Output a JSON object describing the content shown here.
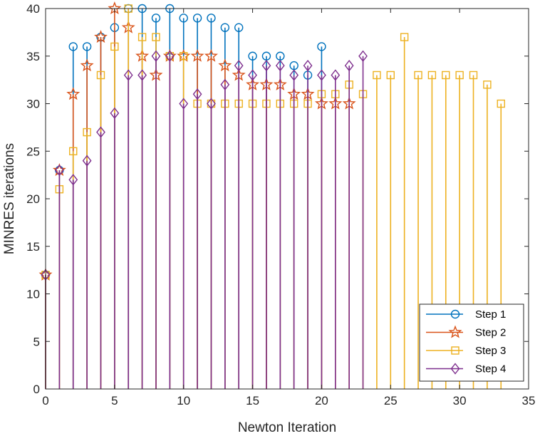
{
  "chart_data": {
    "type": "stem",
    "title": "",
    "xlabel": "Newton Iteration",
    "ylabel": "MINRES iterations",
    "xlim": [
      0,
      35
    ],
    "ylim": [
      0,
      40
    ],
    "xticks": [
      0,
      5,
      10,
      15,
      20,
      25,
      30,
      35
    ],
    "yticks": [
      0,
      5,
      10,
      15,
      20,
      25,
      30,
      35,
      40
    ],
    "grid": false,
    "legend_position": "bottom-right",
    "series": [
      {
        "name": "Step 1",
        "color": "#0072BD",
        "marker": "circle",
        "x": [
          0,
          1,
          2,
          3,
          4,
          5,
          6,
          7,
          8,
          9,
          10,
          11,
          12,
          13,
          14,
          15,
          16,
          17,
          18,
          19,
          20
        ],
        "values": [
          12,
          23,
          36,
          36,
          37,
          38,
          40,
          40,
          39,
          40,
          39,
          39,
          39,
          38,
          38,
          35,
          35,
          35,
          34,
          33,
          36
        ]
      },
      {
        "name": "Step 2",
        "color": "#D95319",
        "marker": "star",
        "x": [
          0,
          1,
          2,
          3,
          4,
          5,
          6,
          7,
          8,
          9,
          10,
          11,
          12,
          13,
          14,
          15,
          16,
          17,
          18,
          19,
          20,
          21,
          22
        ],
        "values": [
          12,
          23,
          31,
          34,
          37,
          40,
          38,
          35,
          33,
          35,
          35,
          35,
          35,
          34,
          33,
          32,
          32,
          32,
          31,
          31,
          30,
          30,
          30
        ]
      },
      {
        "name": "Step 3",
        "color": "#EDB120",
        "marker": "square",
        "x": [
          0,
          1,
          2,
          3,
          4,
          5,
          6,
          7,
          8,
          9,
          10,
          11,
          12,
          13,
          14,
          15,
          16,
          17,
          18,
          19,
          20,
          21,
          22,
          23,
          24,
          25,
          26,
          27,
          28,
          29,
          30,
          31,
          32,
          33
        ],
        "values": [
          12,
          21,
          25,
          27,
          33,
          36,
          40,
          37,
          37,
          35,
          35,
          30,
          30,
          30,
          30,
          30,
          30,
          30,
          30,
          30,
          31,
          31,
          32,
          31,
          33,
          33,
          37,
          33,
          33,
          33,
          33,
          33,
          32,
          30
        ]
      },
      {
        "name": "Step 4",
        "color": "#7E2F8E",
        "marker": "diamond",
        "x": [
          0,
          1,
          2,
          3,
          4,
          5,
          6,
          7,
          8,
          9,
          10,
          11,
          12,
          13,
          14,
          15,
          16,
          17,
          18,
          19,
          20,
          21,
          22,
          23
        ],
        "values": [
          12,
          23,
          22,
          24,
          27,
          29,
          33,
          33,
          35,
          35,
          30,
          31,
          30,
          32,
          34,
          33,
          34,
          34,
          33,
          34,
          33,
          33,
          34,
          35
        ]
      }
    ]
  }
}
